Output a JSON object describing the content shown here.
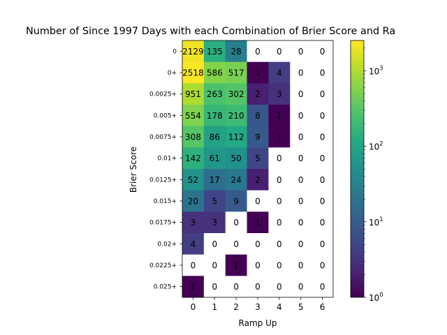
{
  "chart_data": {
    "type": "heatmap",
    "title": "Number of Since 1997 Days with each Combination of Brier Score and Ra",
    "xlabel": "Ramp Up",
    "ylabel": "Brier Score",
    "x_categories": [
      "0",
      "1",
      "2",
      "3",
      "4",
      "5",
      "6"
    ],
    "y_categories": [
      "0",
      "0+",
      "0.0025+",
      "0.005+",
      "0.0075+",
      "0.01+",
      "0.0125+",
      "0.015+",
      "0.0175+",
      "0.02+",
      "0.0225+",
      "0.025+"
    ],
    "values": [
      [
        2129,
        135,
        28,
        0,
        0,
        0,
        0
      ],
      [
        2518,
        586,
        517,
        1,
        4,
        0,
        0
      ],
      [
        951,
        263,
        302,
        2,
        3,
        0,
        0
      ],
      [
        554,
        178,
        210,
        8,
        1,
        0,
        0
      ],
      [
        308,
        86,
        112,
        9,
        1,
        0,
        0
      ],
      [
        142,
        61,
        50,
        5,
        0,
        0,
        0
      ],
      [
        52,
        17,
        24,
        2,
        0,
        0,
        0
      ],
      [
        20,
        5,
        9,
        0,
        0,
        0,
        0
      ],
      [
        3,
        3,
        0,
        1,
        0,
        0,
        0
      ],
      [
        4,
        0,
        0,
        0,
        0,
        0,
        0
      ],
      [
        0,
        0,
        1,
        0,
        0,
        0,
        0
      ],
      [
        1,
        0,
        0,
        0,
        0,
        0,
        0
      ]
    ],
    "color_scale": "log",
    "colormap": "viridis",
    "zero_color": "#ffffff",
    "vmin": 1,
    "vmax": 2518,
    "colorbar": {
      "ticks": [
        {
          "value": 1,
          "base": "10",
          "exp": "0"
        },
        {
          "value": 10,
          "base": "10",
          "exp": "1"
        },
        {
          "value": 100,
          "base": "10",
          "exp": "2"
        },
        {
          "value": 1000,
          "base": "10",
          "exp": "3"
        }
      ]
    }
  }
}
